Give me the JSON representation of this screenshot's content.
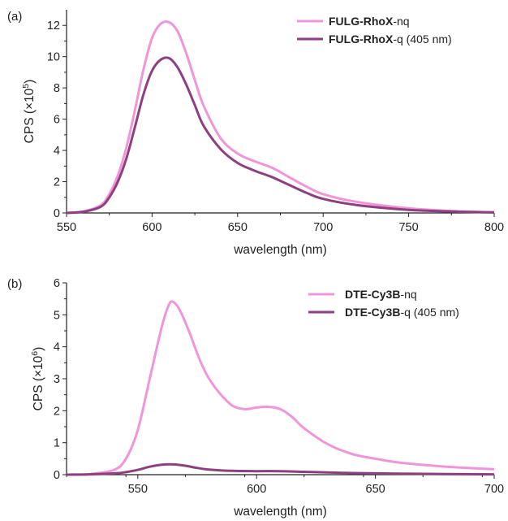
{
  "chart_data": [
    {
      "type": "line",
      "panel_label": "(a)",
      "xlabel": "wavelength (nm)",
      "ylabel": "CPS (×10",
      "ylabel_exp": "5",
      "ylabel_close": ")",
      "xlim": [
        550,
        800
      ],
      "ylim": [
        0,
        13
      ],
      "xticks": [
        550,
        600,
        650,
        700,
        750,
        800
      ],
      "yticks": [
        0,
        2,
        4,
        6,
        8,
        10,
        12
      ],
      "legend_position": "top-right",
      "series": [
        {
          "name_bold": "FULG-RhoX",
          "name_rest": "-nq",
          "color": "#f095d8",
          "x": [
            550,
            560,
            570,
            575,
            580,
            585,
            590,
            595,
            600,
            605,
            610,
            615,
            620,
            625,
            630,
            640,
            650,
            660,
            670,
            680,
            690,
            700,
            720,
            750,
            780,
            800
          ],
          "y": [
            0.0,
            0.1,
            0.5,
            1.2,
            2.4,
            4.2,
            6.6,
            9.2,
            11.2,
            12.1,
            12.2,
            11.6,
            10.2,
            8.5,
            6.9,
            4.8,
            3.8,
            3.3,
            2.9,
            2.3,
            1.7,
            1.2,
            0.7,
            0.3,
            0.1,
            0.05
          ]
        },
        {
          "name_bold": "FULG-RhoX",
          "name_rest": "-q (405 nm)",
          "color": "#8e3f80",
          "x": [
            550,
            560,
            570,
            575,
            580,
            585,
            590,
            595,
            600,
            605,
            610,
            615,
            620,
            625,
            630,
            640,
            650,
            660,
            670,
            680,
            690,
            700,
            720,
            750,
            780,
            800
          ],
          "y": [
            0.0,
            0.08,
            0.4,
            1.0,
            2.0,
            3.5,
            5.5,
            7.6,
            9.1,
            9.8,
            9.9,
            9.3,
            8.2,
            6.9,
            5.6,
            4.1,
            3.2,
            2.7,
            2.3,
            1.8,
            1.3,
            0.9,
            0.5,
            0.2,
            0.08,
            0.03
          ]
        }
      ]
    },
    {
      "type": "line",
      "panel_label": "(b)",
      "xlabel": "wavelength (nm)",
      "ylabel": "CPS (×10",
      "ylabel_exp": "6",
      "ylabel_close": ")",
      "xlim": [
        520,
        700
      ],
      "ylim": [
        0,
        6
      ],
      "xticks": [
        550,
        600,
        650,
        700
      ],
      "yticks": [
        0,
        1,
        2,
        3,
        4,
        5,
        6
      ],
      "legend_position": "top-right",
      "series": [
        {
          "name_bold": "DTE-Cy3B",
          "name_rest": "-nq",
          "color": "#f095d8",
          "x": [
            520,
            530,
            540,
            545,
            550,
            555,
            560,
            563,
            565,
            568,
            572,
            576,
            580,
            585,
            590,
            595,
            600,
            605,
            610,
            615,
            620,
            630,
            640,
            650,
            660,
            680,
            700
          ],
          "y": [
            0.0,
            0.02,
            0.15,
            0.5,
            1.4,
            3.0,
            4.6,
            5.3,
            5.4,
            5.1,
            4.4,
            3.6,
            3.0,
            2.5,
            2.15,
            2.05,
            2.1,
            2.12,
            2.05,
            1.8,
            1.45,
            0.95,
            0.65,
            0.5,
            0.38,
            0.25,
            0.17
          ]
        },
        {
          "name_bold": "DTE-Cy3B",
          "name_rest": "-q (405 nm)",
          "color": "#8e3f80",
          "x": [
            520,
            530,
            540,
            545,
            550,
            555,
            560,
            565,
            570,
            575,
            580,
            590,
            600,
            610,
            620,
            640,
            660,
            680,
            700
          ],
          "y": [
            0.0,
            0.01,
            0.04,
            0.08,
            0.15,
            0.25,
            0.31,
            0.32,
            0.28,
            0.21,
            0.16,
            0.12,
            0.11,
            0.11,
            0.09,
            0.05,
            0.03,
            0.02,
            0.01
          ]
        }
      ]
    }
  ]
}
